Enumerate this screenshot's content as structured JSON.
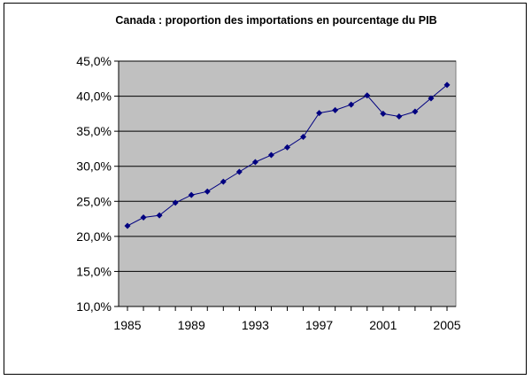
{
  "chart_data": {
    "type": "line",
    "title": "Canada : proportion des importations en pourcentage du PIB",
    "xlabel": "",
    "ylabel": "",
    "x": [
      1985,
      1986,
      1987,
      1988,
      1989,
      1990,
      1991,
      1992,
      1993,
      1994,
      1995,
      1996,
      1997,
      1998,
      1999,
      2000,
      2001,
      2002,
      2003,
      2004,
      2005
    ],
    "series": [
      {
        "name": "",
        "values": [
          21.5,
          22.7,
          23.0,
          24.8,
          25.9,
          26.4,
          27.8,
          29.2,
          30.6,
          31.6,
          32.7,
          34.2,
          37.6,
          38.0,
          38.8,
          40.1,
          37.5,
          37.1,
          37.8,
          39.7,
          41.6
        ]
      }
    ],
    "ylim": [
      10,
      45
    ],
    "yticks": [
      "10,0%",
      "15,0%",
      "20,0%",
      "25,0%",
      "30,0%",
      "35,0%",
      "40,0%",
      "45,0%"
    ],
    "xticks": [
      "1985",
      "1989",
      "1993",
      "1997",
      "2001",
      "2005"
    ],
    "grid": true,
    "legend": "none",
    "colors": {
      "plot_bg": "#c0c0c0",
      "line": "#000080",
      "grid": "#000000"
    }
  }
}
